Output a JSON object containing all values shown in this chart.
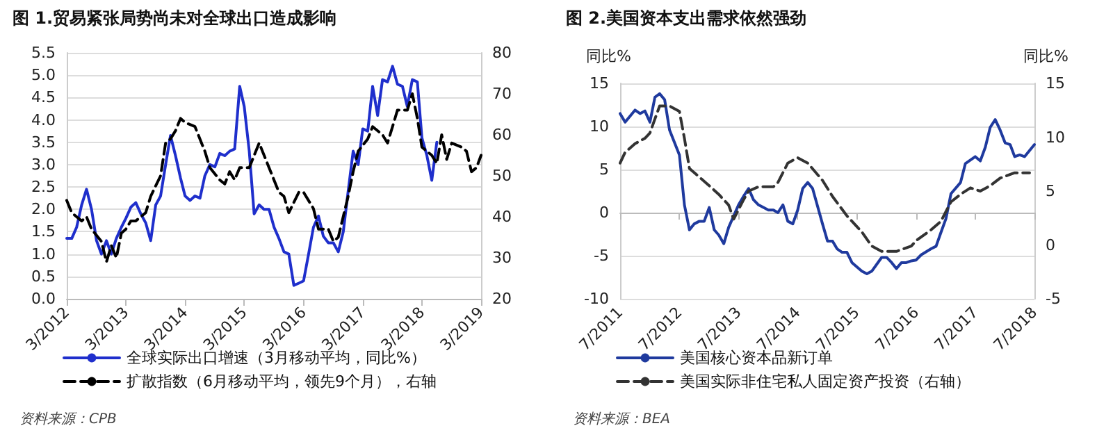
{
  "chart_data": [
    {
      "type": "line",
      "title": "图 1.贸易紧张局势尚未对全球出口造成影响",
      "marker": "none",
      "grid": "y",
      "legend": "bottom",
      "annotations": [
        "资料来源：CPB"
      ],
      "xlim": [
        "2012-03",
        "2019-03"
      ],
      "xticks": [
        {
          "value": "2012-03",
          "label": "3/2012"
        },
        {
          "value": "2013-03",
          "label": "3/2013"
        },
        {
          "value": "2014-03",
          "label": "3/2014"
        },
        {
          "value": "2015-03",
          "label": "3/2015"
        },
        {
          "value": "2016-03",
          "label": "3/2016"
        },
        {
          "value": "2017-03",
          "label": "3/2017"
        },
        {
          "value": "2018-03",
          "label": "3/2018"
        },
        {
          "value": "2019-03",
          "label": "3/2019"
        }
      ],
      "ylim": [
        0,
        5.5
      ],
      "yticks": [
        {
          "value": 0,
          "label": "0.0"
        },
        {
          "value": 0.5,
          "label": "0.5"
        },
        {
          "value": 1,
          "label": "1.0"
        },
        {
          "value": 1.5,
          "label": "1.5"
        },
        {
          "value": 2,
          "label": "2.0"
        },
        {
          "value": 2.5,
          "label": "2.5"
        },
        {
          "value": 3,
          "label": "3.0"
        },
        {
          "value": 3.5,
          "label": "3.5"
        },
        {
          "value": 4,
          "label": "4.0"
        },
        {
          "value": 4.5,
          "label": "4.5"
        },
        {
          "value": 5,
          "label": "5.0"
        },
        {
          "value": 5.5,
          "label": "5.5"
        }
      ],
      "y2lim": [
        20,
        80
      ],
      "y2ticks": [
        20,
        30,
        40,
        50,
        60,
        70,
        80
      ],
      "series": [
        {
          "name": "全球实际出口增速（3月移动平均，同比%）",
          "color": "#1f2fcc",
          "line_style": "solid",
          "x": [
            "2012-03",
            "2012-04",
            "2012-05",
            "2012-06",
            "2012-07",
            "2012-08",
            "2012-09",
            "2012-10",
            "2012-11",
            "2012-12",
            "2013-01",
            "2013-02",
            "2013-03",
            "2013-04",
            "2013-05",
            "2013-06",
            "2013-07",
            "2013-08",
            "2013-09",
            "2013-10",
            "2013-11",
            "2013-12",
            "2014-01",
            "2014-02",
            "2014-03",
            "2014-04",
            "2014-05",
            "2014-06",
            "2014-07",
            "2014-08",
            "2014-09",
            "2014-10",
            "2014-11",
            "2014-12",
            "2015-01",
            "2015-02",
            "2015-03",
            "2015-04",
            "2015-05",
            "2015-06",
            "2015-07",
            "2015-08",
            "2015-09",
            "2015-10",
            "2015-11",
            "2015-12",
            "2016-01",
            "2016-02",
            "2016-03",
            "2016-04",
            "2016-05",
            "2016-06",
            "2016-07",
            "2016-08",
            "2016-09",
            "2016-10",
            "2016-11",
            "2016-12",
            "2017-01",
            "2017-02",
            "2017-03",
            "2017-04",
            "2017-05",
            "2017-06",
            "2017-07",
            "2017-08",
            "2017-09",
            "2017-10",
            "2017-11",
            "2017-12",
            "2018-01",
            "2018-02",
            "2018-03",
            "2018-04",
            "2018-05",
            "2018-06"
          ],
          "values": [
            1.35,
            1.35,
            1.6,
            2.1,
            2.45,
            2.0,
            1.3,
            1.0,
            1.3,
            1.0,
            1.35,
            1.6,
            1.8,
            2.05,
            2.15,
            1.9,
            1.7,
            1.3,
            2.1,
            2.3,
            3.0,
            3.65,
            3.2,
            2.7,
            2.3,
            2.2,
            2.3,
            2.25,
            2.75,
            3.0,
            2.95,
            3.25,
            3.2,
            3.3,
            3.35,
            4.75,
            4.3,
            3.3,
            1.9,
            2.1,
            2.0,
            2.0,
            1.6,
            1.35,
            1.05,
            1.0,
            0.3,
            0.35,
            0.4,
            1.0,
            1.6,
            1.85,
            1.4,
            1.25,
            1.25,
            1.05,
            1.5,
            2.4,
            3.3,
            3.0,
            3.8,
            3.75,
            4.75,
            4.1,
            4.9,
            4.85,
            5.2,
            4.8,
            4.75,
            4.3,
            4.9,
            4.85,
            3.6,
            3.2,
            2.65,
            3.5
          ]
        },
        {
          "name": "扩散指数（6月移动平均，领先9个月），右轴",
          "color": "#000000",
          "line_style": "dashed",
          "axis": "y2",
          "x": [
            "2012-03",
            "2012-04",
            "2012-05",
            "2012-06",
            "2012-07",
            "2012-08",
            "2012-10",
            "2012-11",
            "2012-12",
            "2013-01",
            "2013-02",
            "2013-03",
            "2013-04",
            "2013-05",
            "2013-07",
            "2013-08",
            "2013-10",
            "2013-11",
            "2013-12",
            "2014-01",
            "2014-02",
            "2014-03",
            "2014-05",
            "2014-07",
            "2014-08",
            "2014-10",
            "2014-11",
            "2014-12",
            "2015-01",
            "2015-02",
            "2015-04",
            "2015-06",
            "2015-08",
            "2015-10",
            "2015-11",
            "2015-12",
            "2016-02",
            "2016-03",
            "2016-05",
            "2016-06",
            "2016-08",
            "2016-09",
            "2016-10",
            "2016-12",
            "2017-01",
            "2017-02",
            "2017-04",
            "2017-05",
            "2017-07",
            "2017-08",
            "2017-09",
            "2017-10",
            "2017-12",
            "2018-01",
            "2018-02",
            "2018-03",
            "2018-05",
            "2018-06",
            "2018-07",
            "2018-08",
            "2018-09",
            "2018-11",
            "2018-12",
            "2019-01",
            "2019-02",
            "2019-03"
          ],
          "values": [
            44,
            41,
            40,
            39,
            40,
            37,
            34,
            29,
            33,
            30,
            36,
            37,
            39,
            39,
            41,
            45,
            50,
            58,
            59,
            61,
            64,
            63,
            62,
            56,
            52,
            49,
            48,
            51,
            49,
            52,
            52,
            58,
            52,
            46,
            45,
            41,
            46,
            46,
            42,
            37,
            37,
            34,
            35,
            45,
            51,
            56,
            59,
            62,
            60,
            58,
            62,
            66,
            66,
            70,
            64,
            57,
            55,
            53,
            60,
            54,
            58,
            57,
            56,
            51,
            52,
            55
          ]
        }
      ]
    },
    {
      "type": "line",
      "title": "图 2.美国资本支出需求依然强劲",
      "ylabel": "同比%",
      "y2label": "同比%",
      "marker": "none",
      "grid": "y",
      "legend": "bottom",
      "annotations": [
        "资料来源：BEA"
      ],
      "xlim": [
        "2011-07",
        "2018-07"
      ],
      "xticks": [
        {
          "value": "2011-07",
          "label": "7/2011"
        },
        {
          "value": "2012-07",
          "label": "7/2012"
        },
        {
          "value": "2013-07",
          "label": "7/2013"
        },
        {
          "value": "2014-07",
          "label": "7/2014"
        },
        {
          "value": "2015-07",
          "label": "7/2015"
        },
        {
          "value": "2016-07",
          "label": "7/2016"
        },
        {
          "value": "2017-07",
          "label": "7/2017"
        },
        {
          "value": "2018-07",
          "label": "7/2018"
        }
      ],
      "ylim": [
        -10,
        15
      ],
      "yticks": [
        -10,
        -5,
        0,
        5,
        10,
        15
      ],
      "y2lim": [
        -5,
        15
      ],
      "y2ticks": [
        -5,
        0,
        5,
        10,
        15
      ],
      "series": [
        {
          "name": "美国核心资本品新订单",
          "color": "#1f3a9e",
          "line_style": "solid",
          "x": [
            "2011-07",
            "2011-08",
            "2011-10",
            "2011-11",
            "2011-12",
            "2012-01",
            "2012-02",
            "2012-03",
            "2012-04",
            "2012-05",
            "2012-07",
            "2012-08",
            "2012-09",
            "2012-10",
            "2012-11",
            "2012-12",
            "2013-01",
            "2013-02",
            "2013-03",
            "2013-04",
            "2013-05",
            "2013-07",
            "2013-08",
            "2013-09",
            "2013-10",
            "2013-11",
            "2014-01",
            "2014-02",
            "2014-03",
            "2014-04",
            "2014-05",
            "2014-06",
            "2014-07",
            "2014-08",
            "2014-09",
            "2014-10",
            "2014-12",
            "2015-01",
            "2015-02",
            "2015-03",
            "2015-04",
            "2015-05",
            "2015-06",
            "2015-08",
            "2015-09",
            "2015-10",
            "2015-12",
            "2016-01",
            "2016-02",
            "2016-03",
            "2016-04",
            "2016-05",
            "2016-06",
            "2016-07",
            "2016-08",
            "2016-10",
            "2016-11",
            "2016-12",
            "2017-01",
            "2017-02",
            "2017-04",
            "2017-05",
            "2017-07",
            "2017-08",
            "2017-09",
            "2017-10",
            "2017-11",
            "2017-12",
            "2018-01",
            "2018-02",
            "2018-03",
            "2018-04",
            "2018-05",
            "2018-07"
          ],
          "values": [
            11.5,
            10.5,
            11.9,
            11.5,
            11.8,
            10.5,
            13.4,
            13.8,
            13.1,
            9.6,
            6.7,
            0.9,
            -2.0,
            -1.3,
            -1.0,
            -1.0,
            0.6,
            -2.0,
            -2.6,
            -3.6,
            -1.7,
            0.9,
            1.9,
            2.8,
            1.5,
            0.9,
            0.3,
            0.3,
            0.0,
            0.9,
            -1.0,
            -1.3,
            0.3,
            2.8,
            3.5,
            2.8,
            -1.3,
            -3.3,
            -3.3,
            -4.2,
            -4.6,
            -4.6,
            -5.8,
            -6.8,
            -7.1,
            -6.8,
            -5.2,
            -5.2,
            -5.8,
            -6.5,
            -5.8,
            -5.8,
            -5.6,
            -5.5,
            -4.9,
            -4.2,
            -3.9,
            -2.3,
            -0.7,
            2.2,
            3.5,
            5.7,
            6.5,
            6.0,
            7.6,
            9.9,
            10.8,
            9.6,
            8.1,
            7.9,
            6.5,
            6.7,
            6.5,
            7.9
          ]
        },
        {
          "name": "美国实际非住宅私人固定资产投资（右轴）",
          "color": "#333333",
          "line_style": "dashed",
          "axis": "y2",
          "x": [
            "2011-07",
            "2011-08",
            "2011-10",
            "2011-12",
            "2012-01",
            "2012-02",
            "2012-03",
            "2012-05",
            "2012-07",
            "2012-08",
            "2012-09",
            "2012-11",
            "2013-01",
            "2013-03",
            "2013-05",
            "2013-06",
            "2013-08",
            "2013-09",
            "2013-11",
            "2014-02",
            "2014-03",
            "2014-05",
            "2014-07",
            "2014-09",
            "2014-12",
            "2015-02",
            "2015-05",
            "2015-08",
            "2015-10",
            "2015-12",
            "2016-03",
            "2016-06",
            "2016-07",
            "2016-10",
            "2016-12",
            "2017-02",
            "2017-04",
            "2017-06",
            "2017-08",
            "2017-10",
            "2017-12",
            "2018-03",
            "2018-06"
          ],
          "values": [
            7.6,
            8.6,
            9.4,
            9.9,
            10.4,
            11.7,
            12.9,
            12.9,
            12.4,
            9.9,
            7.1,
            6.3,
            5.5,
            4.7,
            3.7,
            2.4,
            4.2,
            5.0,
            5.4,
            5.4,
            5.8,
            7.6,
            8.1,
            7.6,
            6.0,
            4.5,
            2.7,
            1.2,
            -0.1,
            -0.6,
            -0.6,
            -0.1,
            0.4,
            1.4,
            2.2,
            4.0,
            4.7,
            5.3,
            5.0,
            5.5,
            6.2,
            6.7,
            6.7
          ]
        }
      ]
    }
  ]
}
